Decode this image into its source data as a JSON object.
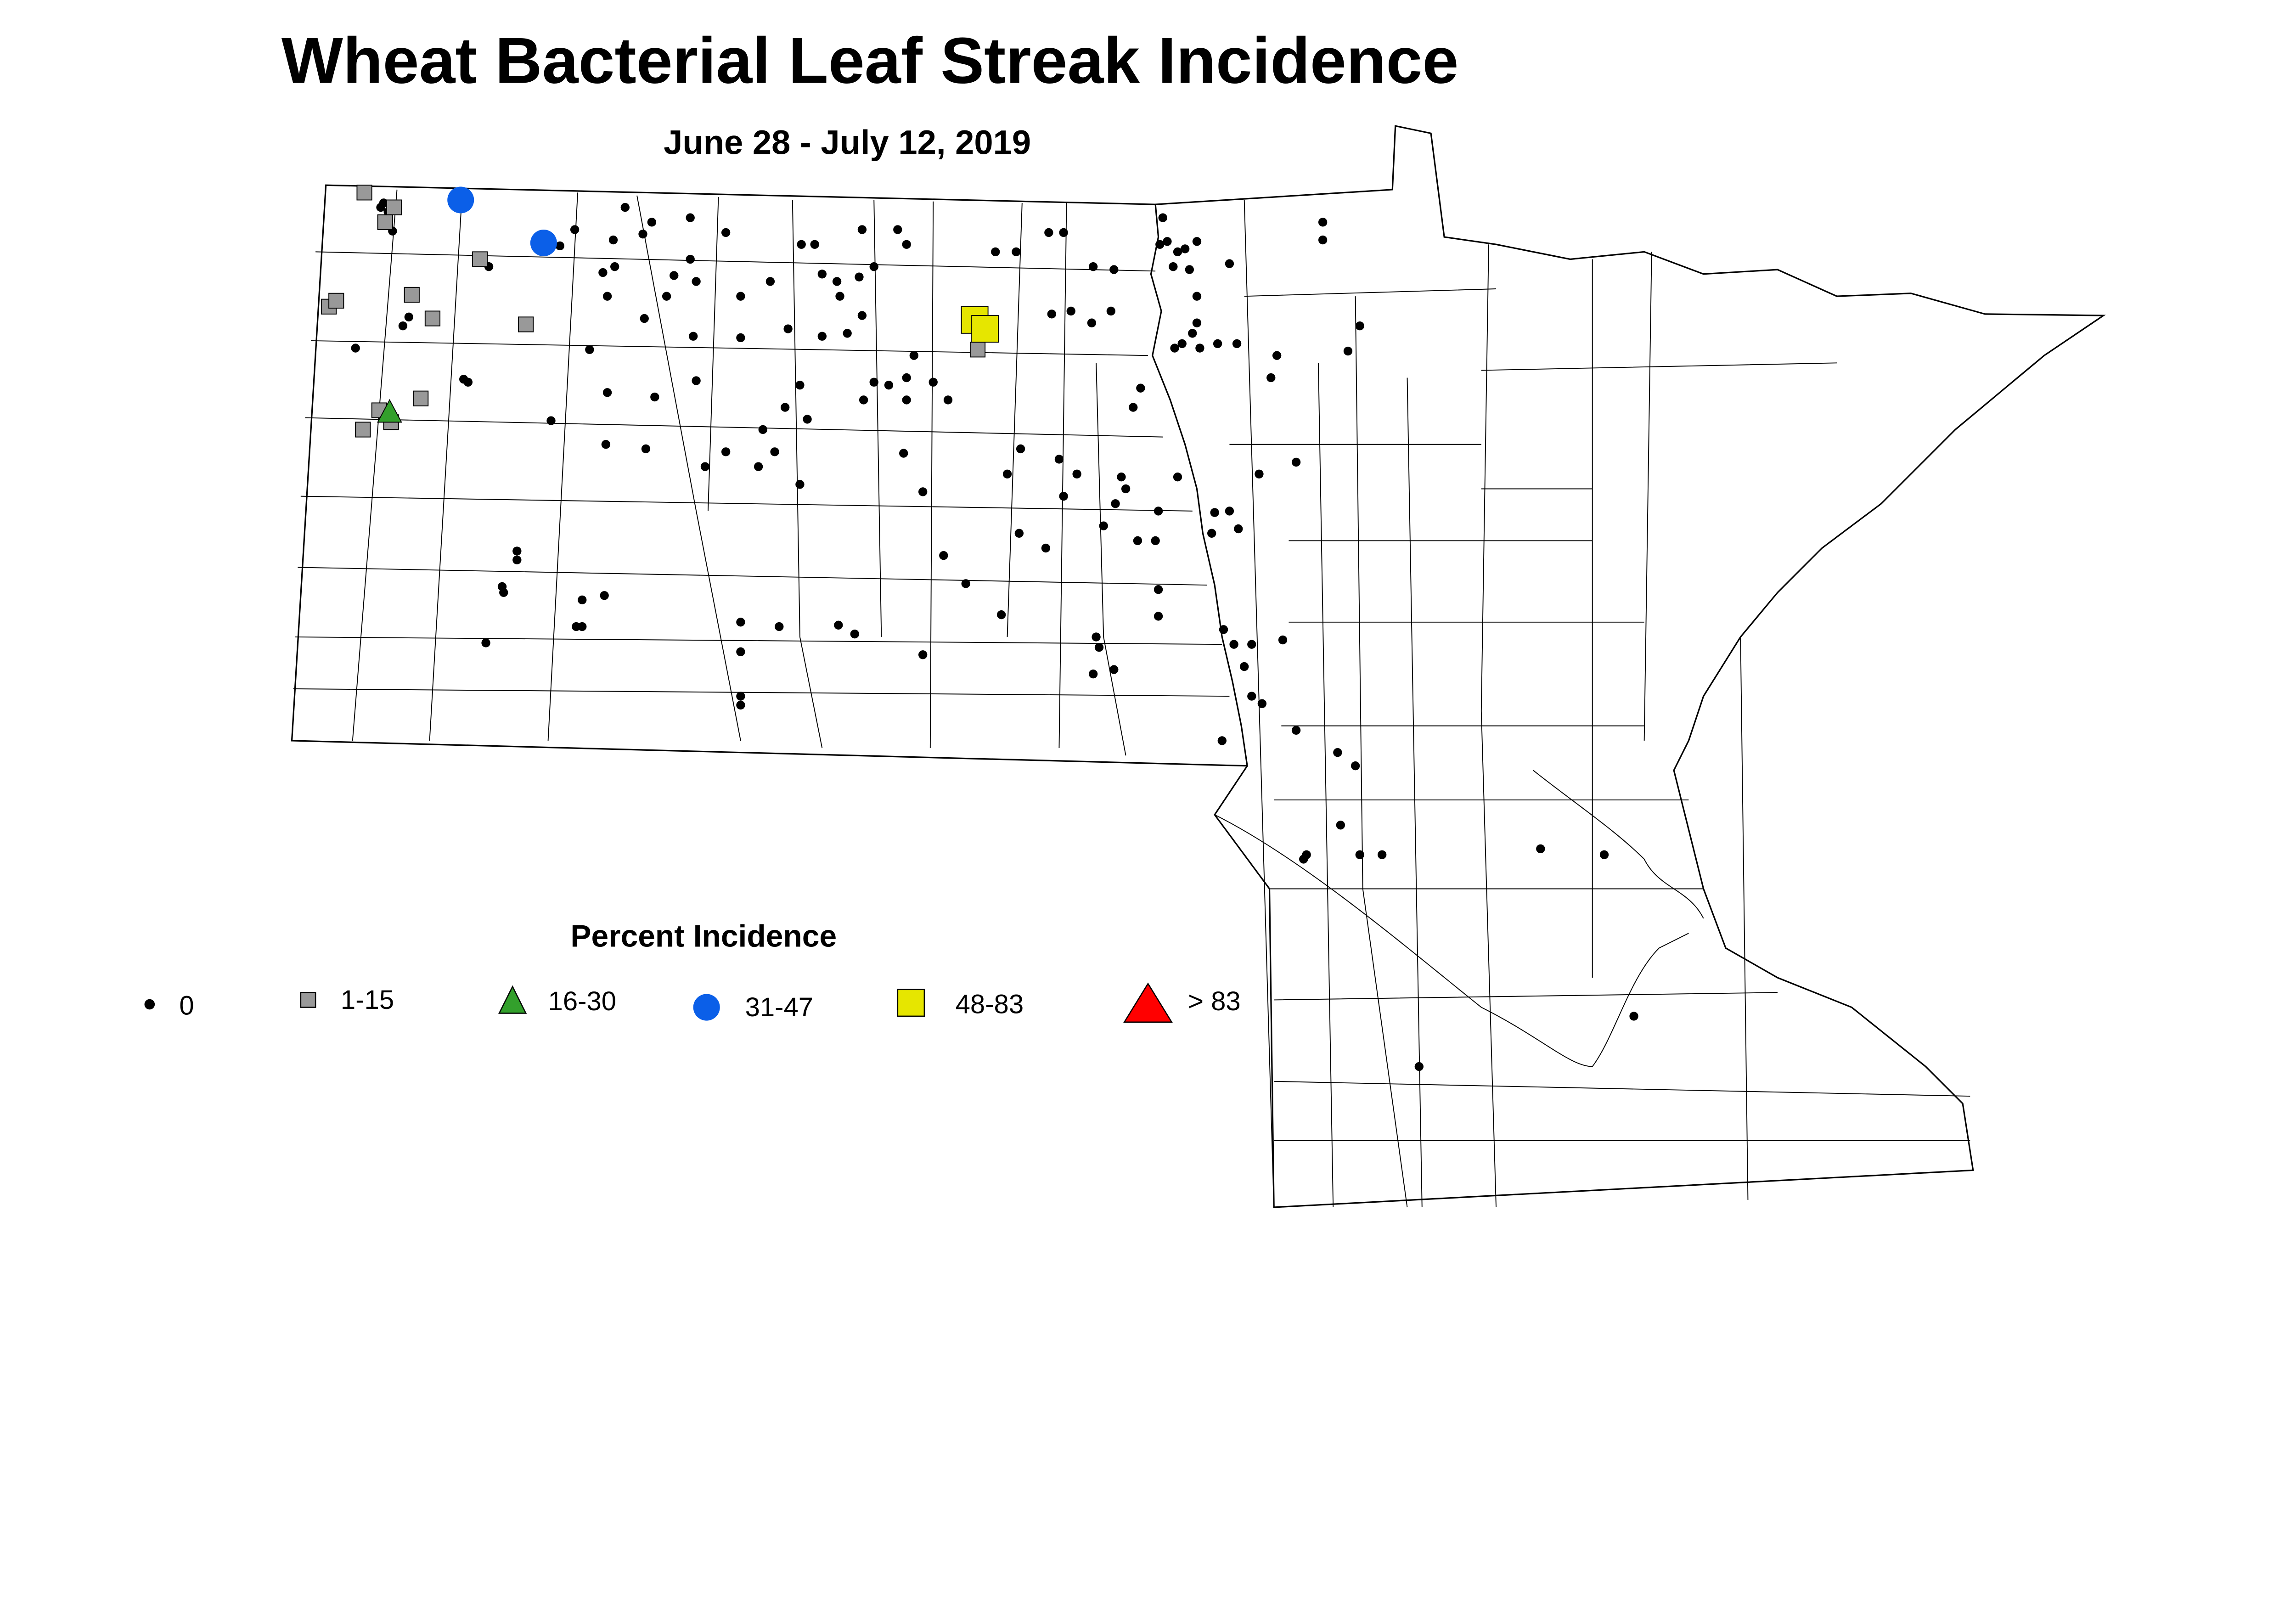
{
  "title": "Wheat Bacterial Leaf Streak Incidence",
  "subtitle": "June 28 - July 12, 2019",
  "legend": {
    "title": "Percent Incidence",
    "items": [
      {
        "label": "0",
        "shape": "dot",
        "color": "#000000"
      },
      {
        "label": "1-15",
        "shape": "square",
        "color": "#999999"
      },
      {
        "label": "16-30",
        "shape": "triangle",
        "color": "#33A02C"
      },
      {
        "label": "31-47",
        "shape": "circle",
        "color": "#0B5FE8"
      },
      {
        "label": "48-83",
        "shape": "square",
        "color": "#E6E600"
      },
      {
        "label": "> 83",
        "shape": "triangle",
        "color": "#FF0000"
      }
    ]
  }
}
